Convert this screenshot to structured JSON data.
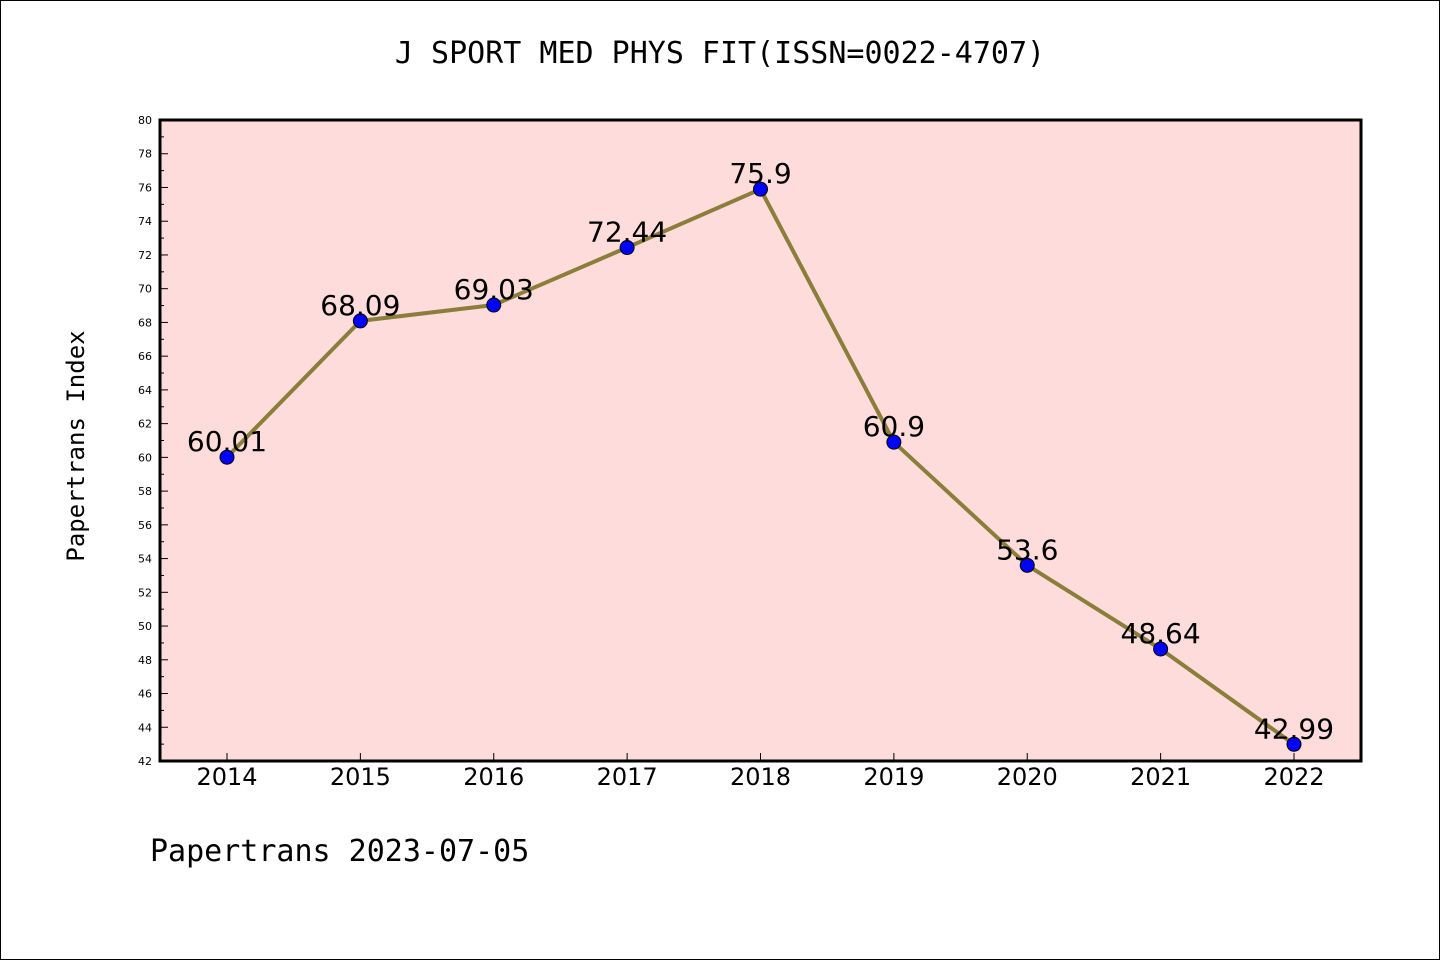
{
  "chart_title": "J SPORT MED PHYS FIT(ISSN=0022-4707)",
  "footer": "Papertrans 2023-07-05",
  "chart_data": {
    "type": "line",
    "title": "J SPORT MED PHYS FIT(ISSN=0022-4707)",
    "xlabel": "",
    "ylabel": "Papertrans Index",
    "categories": [
      "2014",
      "2015",
      "2016",
      "2017",
      "2018",
      "2019",
      "2020",
      "2021",
      "2022"
    ],
    "series": [
      {
        "values": [
          60.01,
          68.09,
          69.03,
          72.44,
          75.9,
          60.9,
          53.6,
          48.64,
          42.99
        ],
        "labels": [
          "60.01",
          "68.09",
          "69.03",
          "72.44",
          "75.9",
          "60.9",
          "53.6",
          "48.64",
          "42.99"
        ],
        "line_color": "#8b7d3a",
        "marker_color": "#0000ff"
      }
    ],
    "ylim": [
      42,
      80
    ],
    "yticks": [
      "42",
      "44",
      "46",
      "48",
      "50",
      "52",
      "54",
      "56",
      "58",
      "60",
      "62",
      "64",
      "66",
      "68",
      "70",
      "72",
      "74",
      "76",
      "78",
      "80"
    ],
    "plot_background": "#fddcdb",
    "grid": false,
    "legend": "none"
  }
}
